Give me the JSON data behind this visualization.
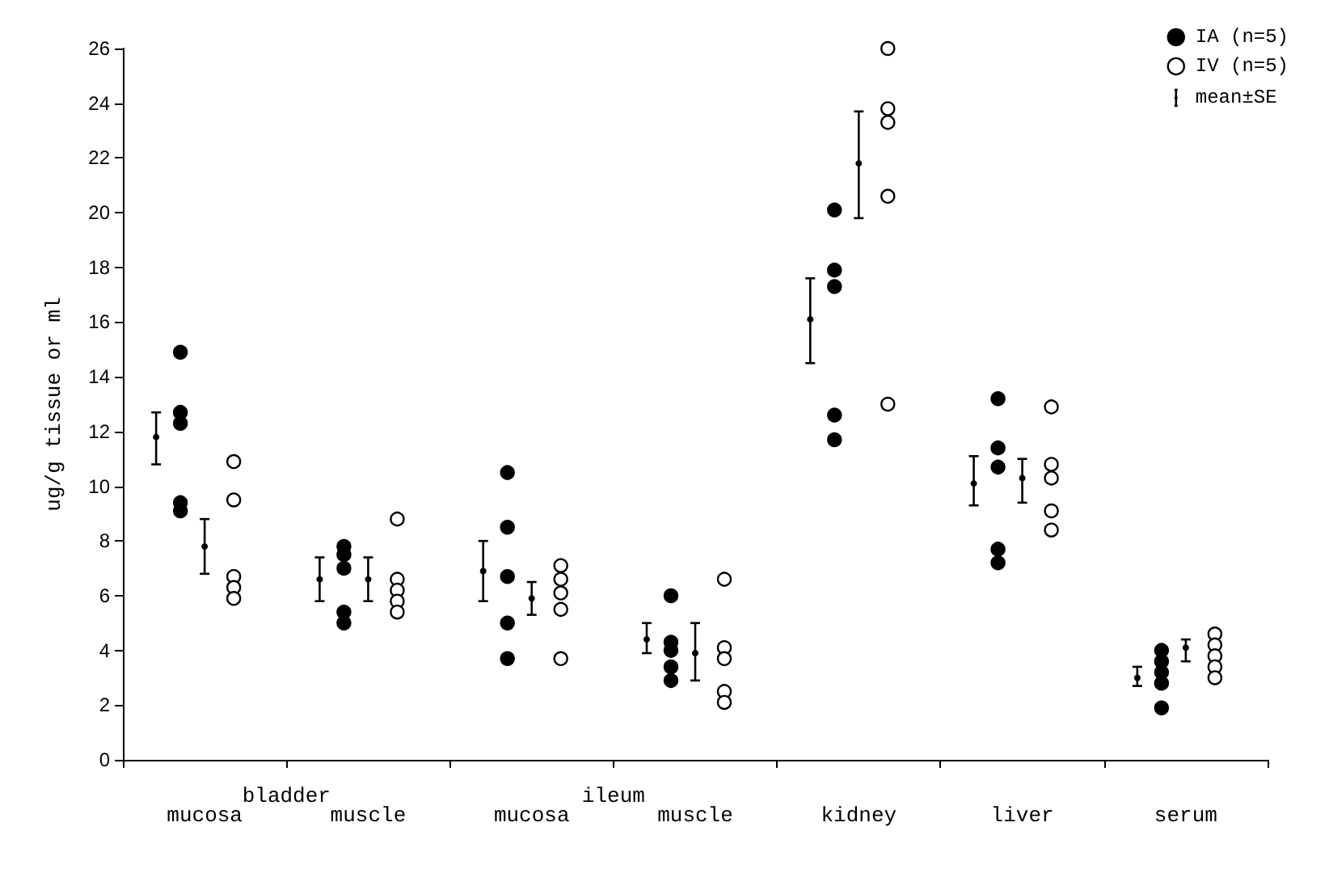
{
  "chart_data": {
    "type": "scatter",
    "ylabel": "ug/g tissue or ml",
    "categories": [
      "mucosa",
      "muscle",
      "mucosa",
      "muscle",
      "kidney",
      "liver",
      "serum"
    ],
    "annotations": [
      "bladder",
      "ileum"
    ],
    "ylim": [
      0,
      26
    ],
    "yticks": [
      0,
      2,
      4,
      6,
      8,
      10,
      12,
      14,
      16,
      18,
      20,
      22,
      24,
      26
    ],
    "grid": false,
    "legend": "top right",
    "series": [
      {
        "name": "IA (n=5)",
        "color": "#000000",
        "marker": "circle",
        "values": [
          14.9,
          7.8,
          10.5,
          6.0,
          20.1,
          13.2,
          4.0
        ]
      },
      {
        "color": "#000000",
        "marker": "circle",
        "values": [
          12.7,
          7.5,
          8.5,
          4.3,
          17.9,
          11.4,
          3.6
        ]
      },
      {
        "color": "#000000",
        "marker": "circle",
        "values": [
          12.3,
          7.0,
          6.7,
          4.0,
          17.3,
          10.7,
          3.2
        ]
      },
      {
        "color": "#000000",
        "marker": "circle",
        "values": [
          9.4,
          5.4,
          5.0,
          3.4,
          12.6,
          7.7,
          2.8
        ]
      },
      {
        "color": "#000000",
        "marker": "circle",
        "values": [
          9.1,
          5.0,
          3.7,
          2.9,
          11.7,
          7.2,
          1.9
        ]
      },
      {
        "name": "IV (n=5)",
        "color": "#ffffff",
        "marker": "circle",
        "values": [
          10.9,
          8.8,
          7.1,
          6.6,
          26.0,
          12.9,
          4.6
        ]
      },
      {
        "color": "#ffffff",
        "marker": "circle",
        "values": [
          9.5,
          6.6,
          6.6,
          4.1,
          23.8,
          10.8,
          4.2
        ]
      },
      {
        "color": "#ffffff",
        "marker": "circle",
        "values": [
          6.7,
          6.2,
          6.1,
          3.7,
          23.3,
          10.3,
          3.8
        ]
      },
      {
        "color": "#ffffff",
        "marker": "circle",
        "values": [
          6.3,
          5.8,
          5.5,
          2.5,
          20.6,
          9.1,
          3.4
        ]
      },
      {
        "color": "#ffffff",
        "marker": "circle",
        "values": [
          5.9,
          5.4,
          3.7,
          2.1,
          13.0,
          8.4,
          3.0
        ]
      },
      {
        "name": "mean±SE",
        "color": "#000000",
        "marker": "circle",
        "values": [
          11.8,
          6.6,
          6.9,
          4.4,
          16.1,
          10.1,
          3.0
        ],
        "errors": [
          [
            10.8,
            12.7
          ],
          [
            5.8,
            7.4
          ],
          [
            5.8,
            8.0
          ],
          [
            3.9,
            5.0
          ],
          [
            14.5,
            17.6
          ],
          [
            9.3,
            11.1
          ],
          [
            2.7,
            3.4
          ]
        ]
      },
      {
        "color": "#000000",
        "marker": "circle",
        "values": [
          7.8,
          6.6,
          5.9,
          3.9,
          21.8,
          10.3,
          4.1
        ],
        "errors": [
          [
            6.8,
            8.8
          ],
          [
            5.8,
            7.4
          ],
          [
            5.3,
            6.5
          ],
          [
            2.9,
            5.0
          ],
          [
            19.8,
            23.7
          ],
          [
            9.4,
            11.0
          ],
          [
            3.6,
            4.4
          ]
        ]
      }
    ]
  }
}
